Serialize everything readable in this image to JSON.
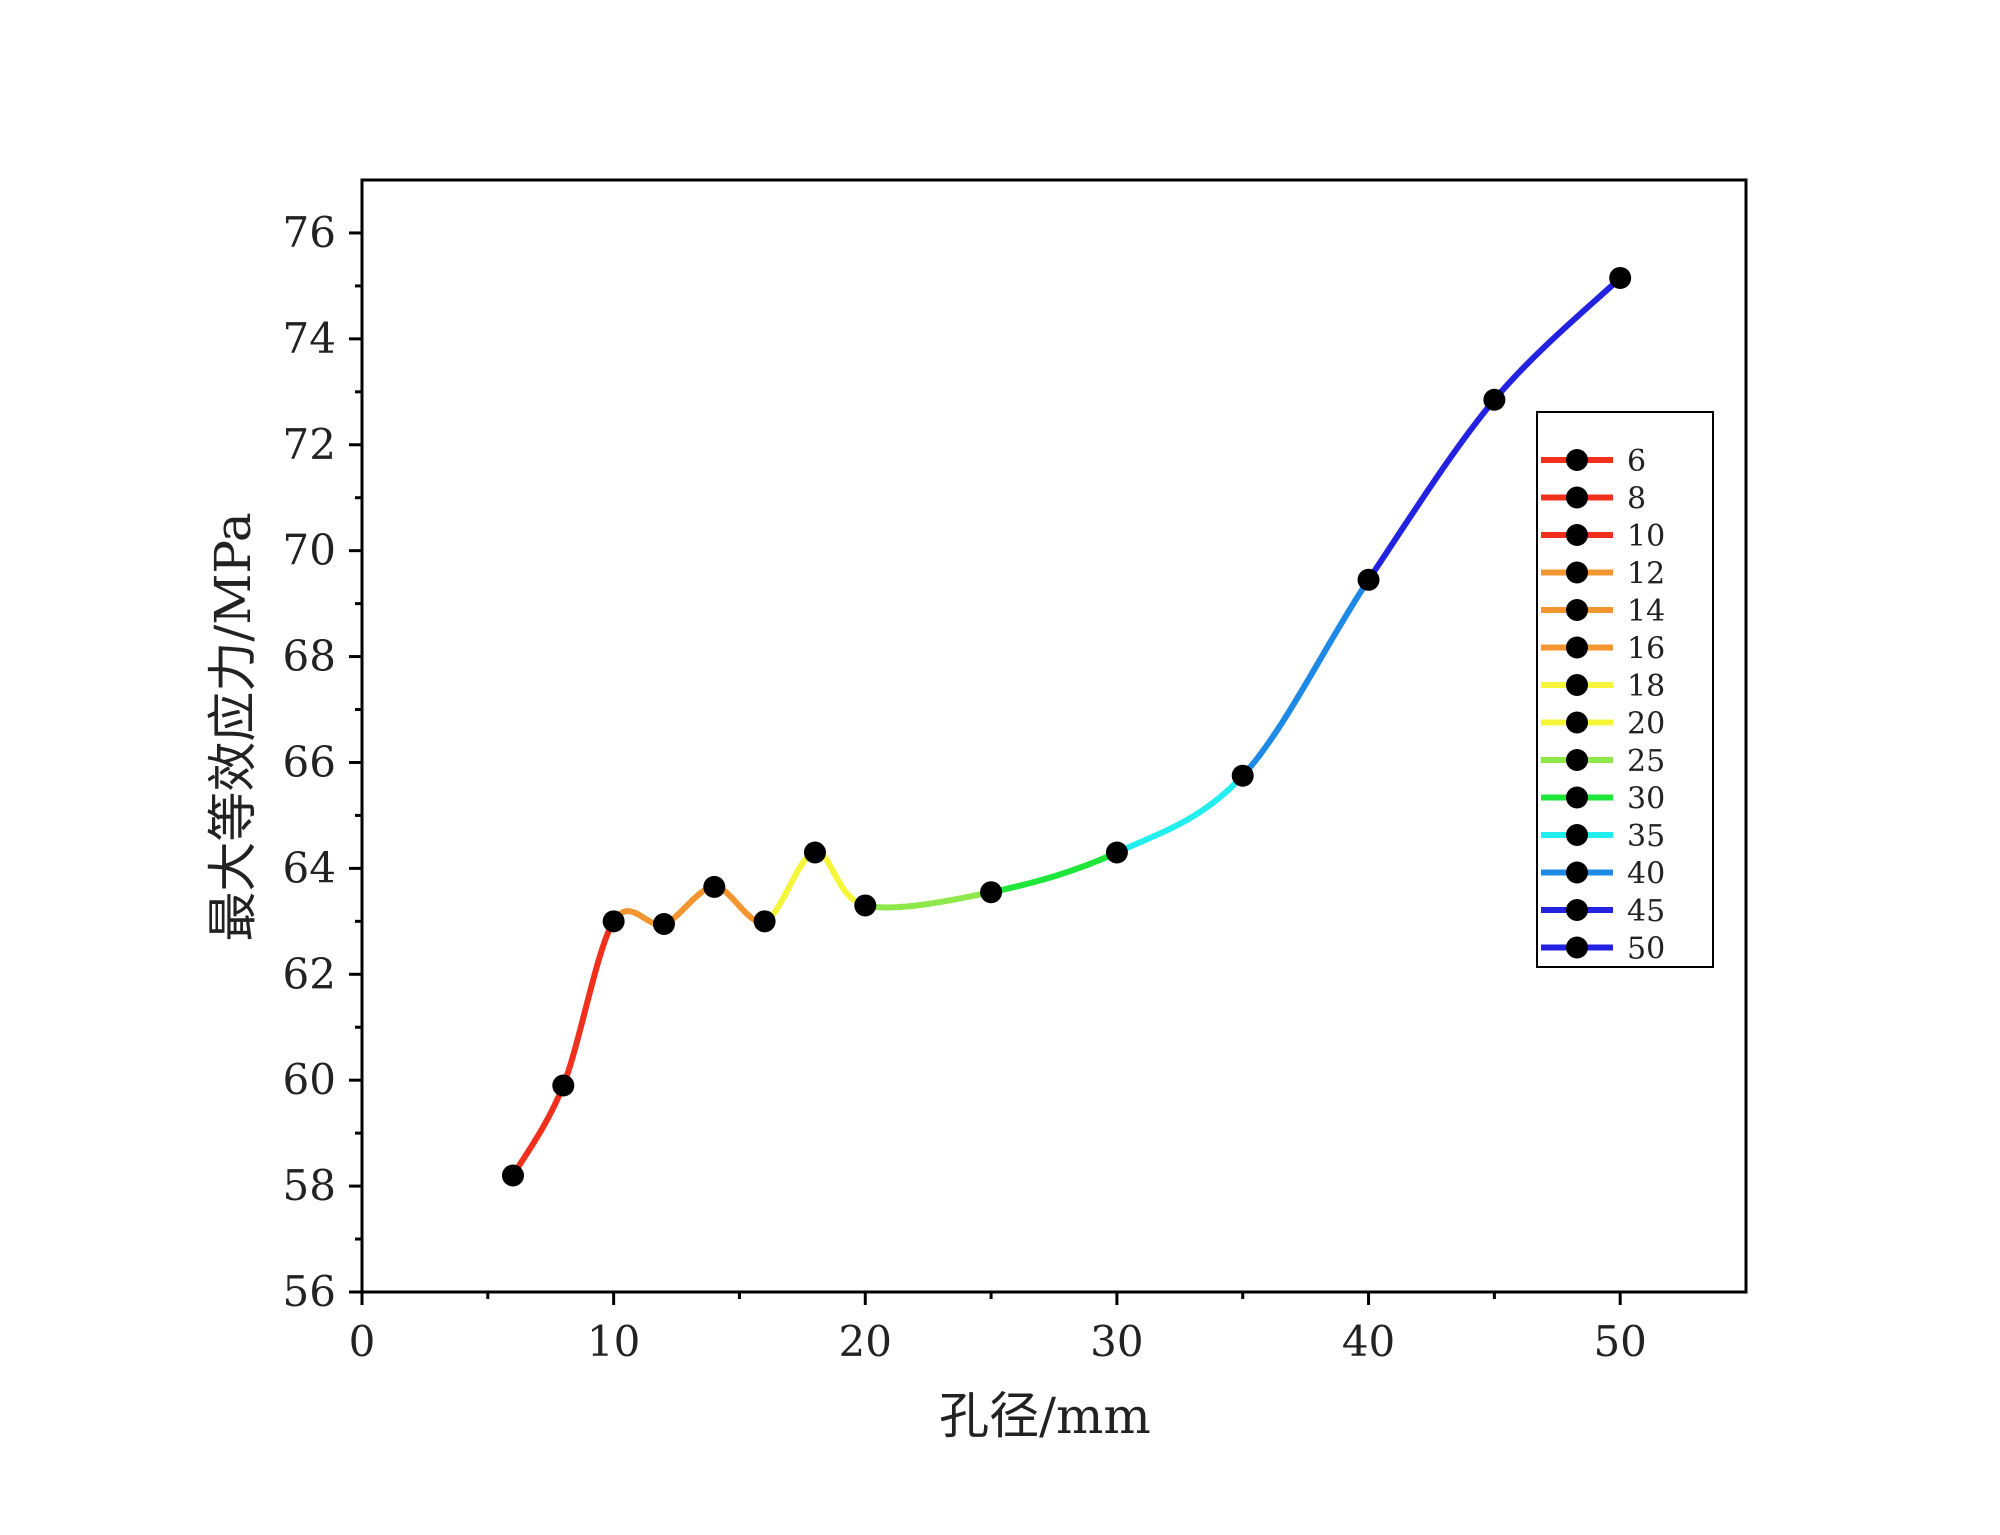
{
  "chart_data": {
    "type": "line",
    "xlabel": "孔径/mm",
    "ylabel": "最大等效应力/MPa",
    "xlim": [
      0,
      55
    ],
    "ylim": [
      56,
      77
    ],
    "x_ticks": [
      0,
      10,
      20,
      30,
      40,
      50
    ],
    "x_tick_labels": [
      "0",
      "10",
      "20",
      "30",
      "40",
      "50"
    ],
    "y_ticks": [
      56,
      58,
      60,
      62,
      64,
      66,
      68,
      70,
      72,
      74,
      76
    ],
    "y_tick_labels": [
      "56",
      "58",
      "60",
      "62",
      "64",
      "66",
      "68",
      "70",
      "72",
      "74",
      "76"
    ],
    "grid": false,
    "legend_position": "right",
    "marker_color": "#000000",
    "points": [
      {
        "x": 6,
        "y": 58.2,
        "color": "#f0301c"
      },
      {
        "x": 8,
        "y": 59.9,
        "color": "#f0301c"
      },
      {
        "x": 10,
        "y": 63.0,
        "color": "#f0301c"
      },
      {
        "x": 12,
        "y": 62.95,
        "color": "#f39530"
      },
      {
        "x": 14,
        "y": 63.65,
        "color": "#f39530"
      },
      {
        "x": 16,
        "y": 63.0,
        "color": "#f39530"
      },
      {
        "x": 18,
        "y": 64.3,
        "color": "#f5f53a"
      },
      {
        "x": 20,
        "y": 63.3,
        "color": "#f5f53a"
      },
      {
        "x": 25,
        "y": 63.55,
        "color": "#8ee84a"
      },
      {
        "x": 30,
        "y": 64.3,
        "color": "#1ee63a"
      },
      {
        "x": 35,
        "y": 65.75,
        "color": "#22eeee"
      },
      {
        "x": 40,
        "y": 69.45,
        "color": "#1e8ae6"
      },
      {
        "x": 45,
        "y": 72.85,
        "color": "#2222e0"
      },
      {
        "x": 50,
        "y": 75.15,
        "color": "#2222e0"
      }
    ],
    "legend": [
      {
        "label": "6",
        "color": "#f0301c"
      },
      {
        "label": "8",
        "color": "#f0301c"
      },
      {
        "label": "10",
        "color": "#f0301c"
      },
      {
        "label": "12",
        "color": "#f39530"
      },
      {
        "label": "14",
        "color": "#f39530"
      },
      {
        "label": "16",
        "color": "#f39530"
      },
      {
        "label": "18",
        "color": "#f5f53a"
      },
      {
        "label": "20",
        "color": "#f5f53a"
      },
      {
        "label": "25",
        "color": "#8ee84a"
      },
      {
        "label": "30",
        "color": "#1ee63a"
      },
      {
        "label": "35",
        "color": "#22eeee"
      },
      {
        "label": "40",
        "color": "#1e8ae6"
      },
      {
        "label": "45",
        "color": "#2222e0"
      },
      {
        "label": "50",
        "color": "#2222e0"
      }
    ]
  }
}
